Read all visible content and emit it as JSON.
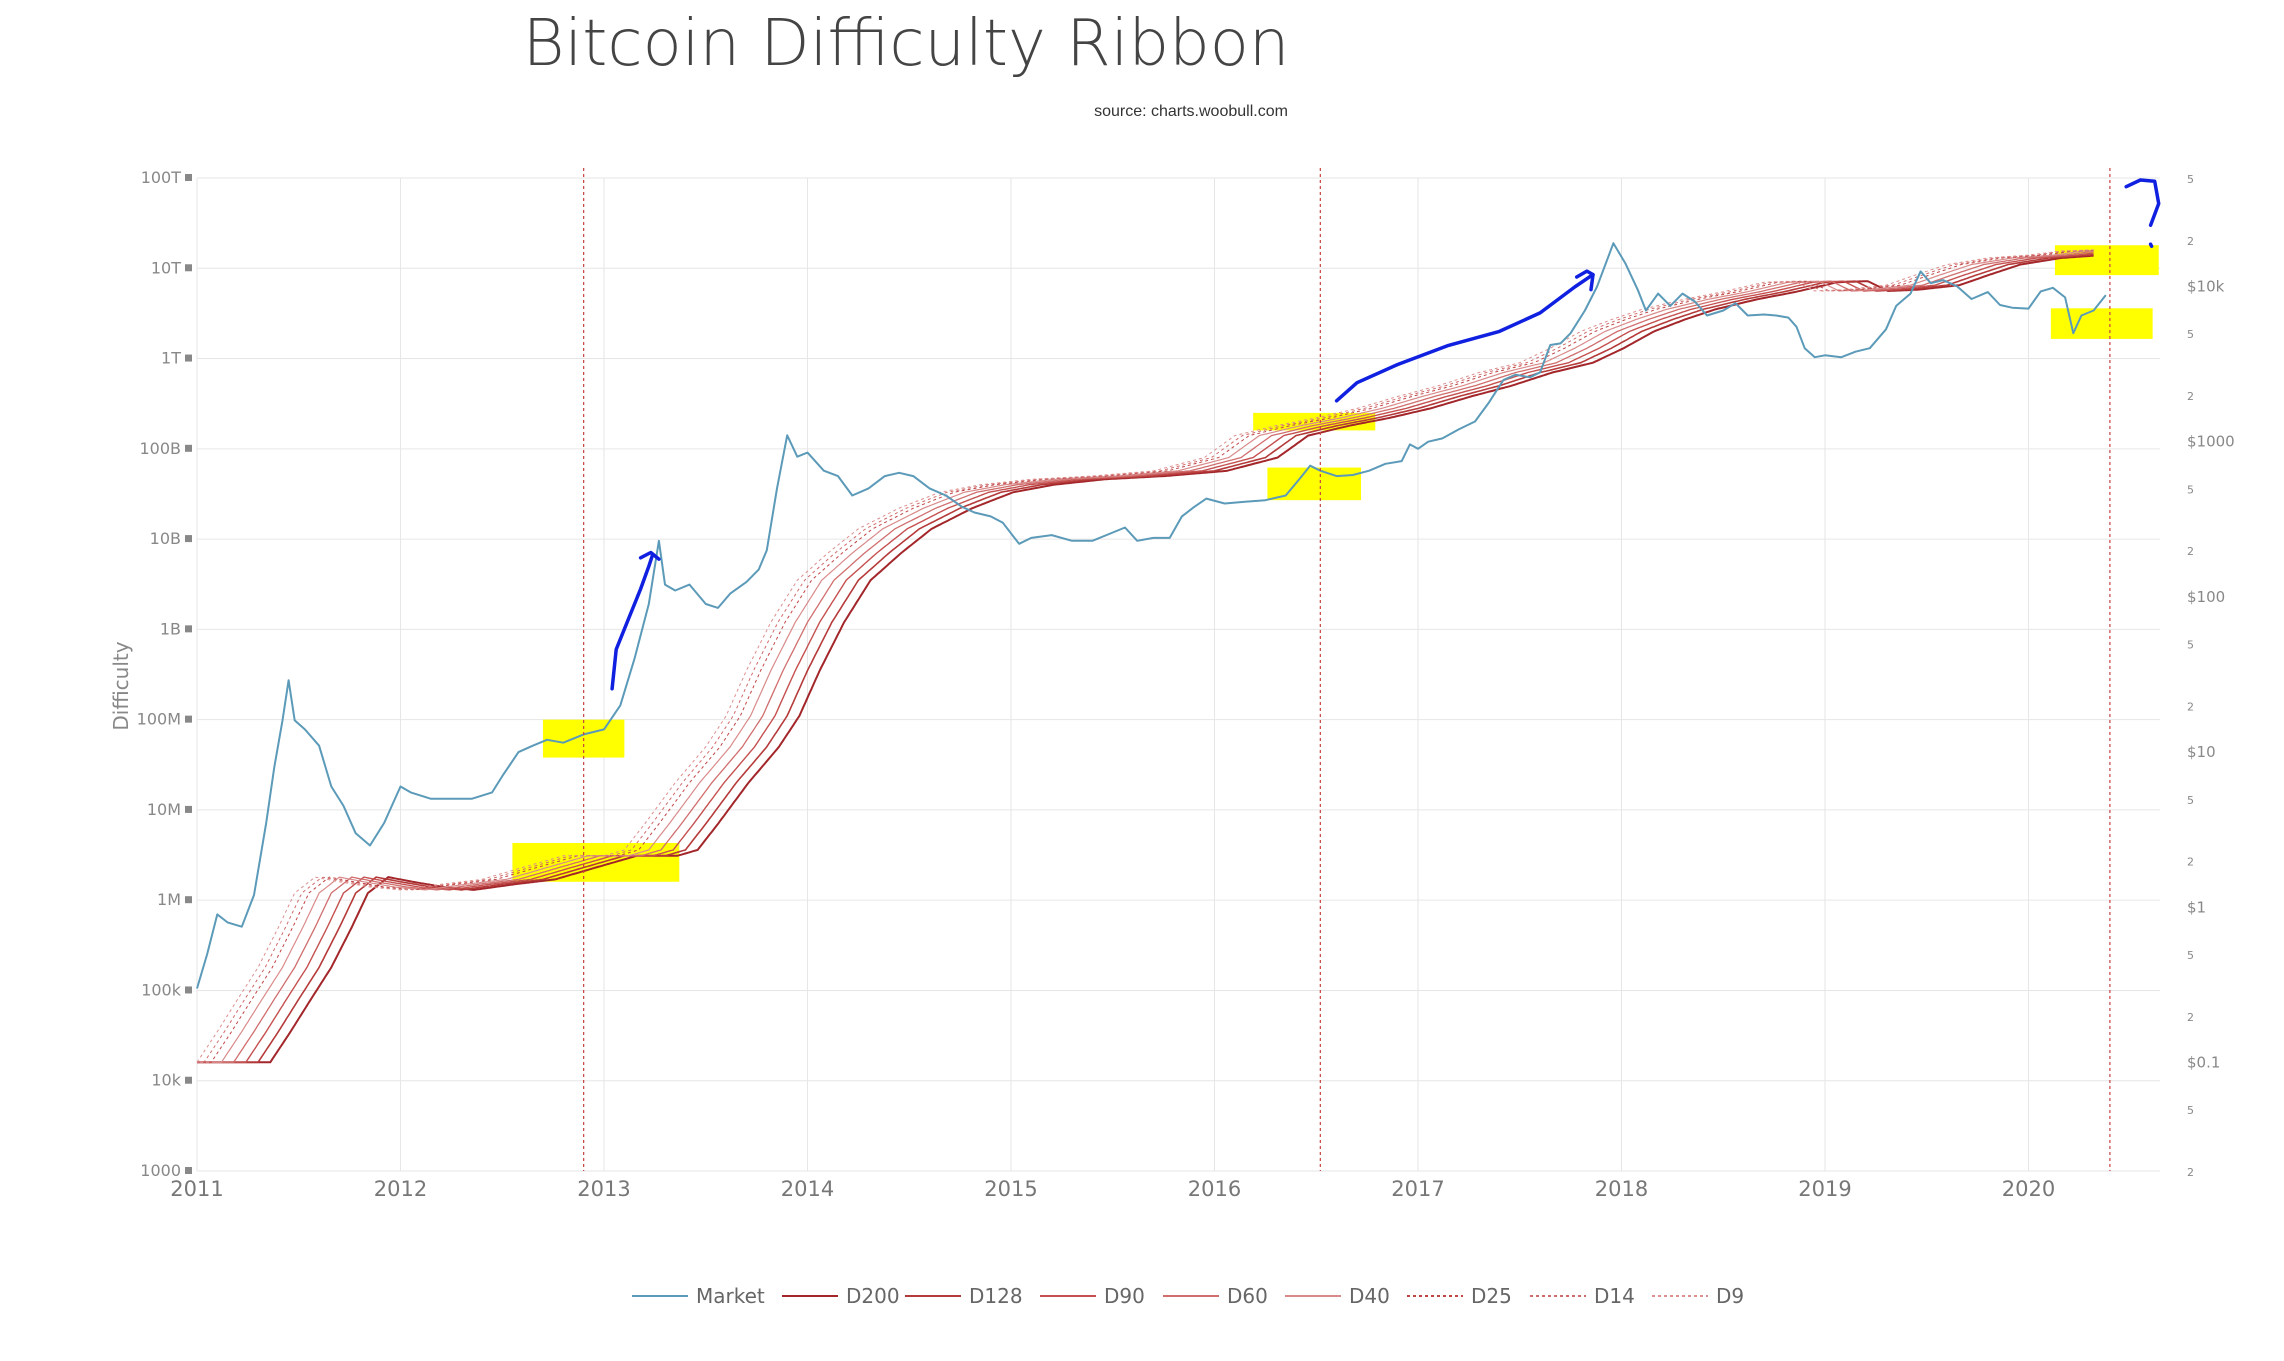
{
  "chart_data": {
    "type": "line",
    "title": "Bitcoin Difficulty Ribbon",
    "subtitle": "source: charts.woobull.com",
    "ylabel": "Difficulty",
    "y_scale": "log",
    "ylim": [
      1000,
      100000000000000
    ],
    "y_ticks": [
      {
        "value": 1000,
        "label": "1000"
      },
      {
        "value": 10000,
        "label": "10k"
      },
      {
        "value": 100000,
        "label": "100k"
      },
      {
        "value": 1000000,
        "label": "1M"
      },
      {
        "value": 10000000,
        "label": "10M"
      },
      {
        "value": 100000000,
        "label": "100M"
      },
      {
        "value": 1000000000,
        "label": "1B"
      },
      {
        "value": 10000000000,
        "label": "10B"
      },
      {
        "value": 100000000000,
        "label": "100B"
      },
      {
        "value": 1000000000000,
        "label": "1T"
      },
      {
        "value": 10000000000000,
        "label": "10T"
      },
      {
        "value": 100000000000000,
        "label": "100T"
      }
    ],
    "x_range": [
      2011.0,
      2021.0
    ],
    "x_ticks": [
      "2011",
      "2012",
      "2013",
      "2014",
      "2015",
      "2016",
      "2017",
      "2018",
      "2019",
      "2020"
    ],
    "price_scale": "log",
    "price_range": [
      0.02,
      50000
    ],
    "price_ticks": [
      {
        "value": 50000,
        "label": "5"
      },
      {
        "value": 20000,
        "label": "2"
      },
      {
        "value": 10000,
        "label": "$10k"
      },
      {
        "value": 5000,
        "label": "5"
      },
      {
        "value": 2000,
        "label": "2"
      },
      {
        "value": 1000,
        "label": "$1000"
      },
      {
        "value": 500,
        "label": "5"
      },
      {
        "value": 200,
        "label": "2"
      },
      {
        "value": 100,
        "label": "$100"
      },
      {
        "value": 50,
        "label": "5"
      },
      {
        "value": 20,
        "label": "2"
      },
      {
        "value": 10,
        "label": "$10"
      },
      {
        "value": 5,
        "label": "5"
      },
      {
        "value": 2,
        "label": "2"
      },
      {
        "value": 1,
        "label": "$1"
      },
      {
        "value": 0.5,
        "label": "5"
      },
      {
        "value": 0.2,
        "label": "2"
      },
      {
        "value": 0.1,
        "label": "$0.1"
      },
      {
        "value": 0.05,
        "label": "5"
      },
      {
        "value": 0.02,
        "label": "2"
      }
    ],
    "grid": true,
    "legend_position": "bottom",
    "vertical_markers": [
      2012.9,
      2016.52,
      2020.4
    ],
    "market": {
      "name": "Market",
      "color": "#5b9ab8",
      "points": [
        [
          2011.0,
          0.3
        ],
        [
          2011.05,
          0.5
        ],
        [
          2011.1,
          0.9
        ],
        [
          2011.15,
          0.8
        ],
        [
          2011.22,
          0.75
        ],
        [
          2011.28,
          1.2
        ],
        [
          2011.34,
          3.5
        ],
        [
          2011.38,
          8
        ],
        [
          2011.42,
          16
        ],
        [
          2011.45,
          29
        ],
        [
          2011.48,
          16
        ],
        [
          2011.53,
          14
        ],
        [
          2011.6,
          11
        ],
        [
          2011.66,
          6
        ],
        [
          2011.72,
          4.5
        ],
        [
          2011.78,
          3
        ],
        [
          2011.85,
          2.5
        ],
        [
          2011.92,
          3.5
        ],
        [
          2012.0,
          6
        ],
        [
          2012.05,
          5.5
        ],
        [
          2012.15,
          5
        ],
        [
          2012.25,
          5
        ],
        [
          2012.35,
          5
        ],
        [
          2012.45,
          5.5
        ],
        [
          2012.5,
          7
        ],
        [
          2012.58,
          10
        ],
        [
          2012.65,
          11
        ],
        [
          2012.72,
          12
        ],
        [
          2012.8,
          11.5
        ],
        [
          2012.9,
          13
        ],
        [
          2013.0,
          14
        ],
        [
          2013.08,
          20
        ],
        [
          2013.15,
          40
        ],
        [
          2013.22,
          90
        ],
        [
          2013.27,
          230
        ],
        [
          2013.3,
          120
        ],
        [
          2013.35,
          110
        ],
        [
          2013.42,
          120
        ],
        [
          2013.5,
          90
        ],
        [
          2013.56,
          85
        ],
        [
          2013.62,
          105
        ],
        [
          2013.7,
          125
        ],
        [
          2013.76,
          150
        ],
        [
          2013.8,
          200
        ],
        [
          2013.85,
          500
        ],
        [
          2013.9,
          1100
        ],
        [
          2013.95,
          800
        ],
        [
          2014.0,
          850
        ],
        [
          2014.08,
          650
        ],
        [
          2014.15,
          600
        ],
        [
          2014.22,
          450
        ],
        [
          2014.3,
          500
        ],
        [
          2014.38,
          600
        ],
        [
          2014.45,
          630
        ],
        [
          2014.52,
          600
        ],
        [
          2014.6,
          500
        ],
        [
          2014.68,
          450
        ],
        [
          2014.76,
          380
        ],
        [
          2014.82,
          350
        ],
        [
          2014.9,
          330
        ],
        [
          2014.96,
          300
        ],
        [
          2015.04,
          220
        ],
        [
          2015.1,
          240
        ],
        [
          2015.2,
          250
        ],
        [
          2015.3,
          230
        ],
        [
          2015.4,
          230
        ],
        [
          2015.5,
          260
        ],
        [
          2015.56,
          280
        ],
        [
          2015.62,
          230
        ],
        [
          2015.7,
          240
        ],
        [
          2015.78,
          240
        ],
        [
          2015.84,
          330
        ],
        [
          2015.9,
          380
        ],
        [
          2015.96,
          430
        ],
        [
          2016.05,
          400
        ],
        [
          2016.15,
          410
        ],
        [
          2016.25,
          420
        ],
        [
          2016.35,
          450
        ],
        [
          2016.42,
          580
        ],
        [
          2016.47,
          700
        ],
        [
          2016.52,
          650
        ],
        [
          2016.6,
          600
        ],
        [
          2016.68,
          610
        ],
        [
          2016.76,
          650
        ],
        [
          2016.84,
          720
        ],
        [
          2016.92,
          750
        ],
        [
          2016.96,
          960
        ],
        [
          2017.0,
          900
        ],
        [
          2017.05,
          1000
        ],
        [
          2017.12,
          1050
        ],
        [
          2017.2,
          1200
        ],
        [
          2017.28,
          1350
        ],
        [
          2017.35,
          1800
        ],
        [
          2017.42,
          2500
        ],
        [
          2017.48,
          2700
        ],
        [
          2017.55,
          2600
        ],
        [
          2017.6,
          2800
        ],
        [
          2017.65,
          4200
        ],
        [
          2017.7,
          4300
        ],
        [
          2017.75,
          5000
        ],
        [
          2017.82,
          7000
        ],
        [
          2017.88,
          10000
        ],
        [
          2017.96,
          19000
        ],
        [
          2018.02,
          14000
        ],
        [
          2018.08,
          9500
        ],
        [
          2018.12,
          7000
        ],
        [
          2018.18,
          9000
        ],
        [
          2018.24,
          7500
        ],
        [
          2018.3,
          9000
        ],
        [
          2018.36,
          8000
        ],
        [
          2018.42,
          6500
        ],
        [
          2018.5,
          7000
        ],
        [
          2018.56,
          7800
        ],
        [
          2018.62,
          6500
        ],
        [
          2018.7,
          6600
        ],
        [
          2018.76,
          6500
        ],
        [
          2018.82,
          6300
        ],
        [
          2018.86,
          5500
        ],
        [
          2018.9,
          4000
        ],
        [
          2018.95,
          3500
        ],
        [
          2019.0,
          3600
        ],
        [
          2019.08,
          3500
        ],
        [
          2019.15,
          3800
        ],
        [
          2019.22,
          4000
        ],
        [
          2019.3,
          5300
        ],
        [
          2019.35,
          7500
        ],
        [
          2019.42,
          9000
        ],
        [
          2019.47,
          12500
        ],
        [
          2019.52,
          10500
        ],
        [
          2019.58,
          11000
        ],
        [
          2019.65,
          10000
        ],
        [
          2019.72,
          8300
        ],
        [
          2019.8,
          9200
        ],
        [
          2019.86,
          7600
        ],
        [
          2019.92,
          7300
        ],
        [
          2020.0,
          7200
        ],
        [
          2020.06,
          9300
        ],
        [
          2020.12,
          9800
        ],
        [
          2020.18,
          8500
        ],
        [
          2020.22,
          5000
        ],
        [
          2020.26,
          6500
        ],
        [
          2020.32,
          7000
        ],
        [
          2020.38,
          8800
        ]
      ]
    },
    "ribbon": [
      {
        "name": "D200",
        "color": "#a3262a",
        "dash": "",
        "width": 2.0,
        "lag": 0.36
      },
      {
        "name": "D128",
        "color": "#b53a3a",
        "dash": "",
        "width": 1.6,
        "lag": 0.3
      },
      {
        "name": "D90",
        "color": "#c55050",
        "dash": "",
        "width": 1.4,
        "lag": 0.24
      },
      {
        "name": "D60",
        "color": "#d06e6e",
        "dash": "",
        "width": 1.3,
        "lag": 0.18
      },
      {
        "name": "D40",
        "color": "#d98a8a",
        "dash": "",
        "width": 1.2,
        "lag": 0.12
      },
      {
        "name": "D25",
        "color": "#c04545",
        "dash": "3,3",
        "width": 1.0,
        "lag": 0.07
      },
      {
        "name": "D14",
        "color": "#cf6b6b",
        "dash": "3,3",
        "width": 1.0,
        "lag": 0.035
      },
      {
        "name": "D9",
        "color": "#dd8f8f",
        "dash": "3,3",
        "width": 1.0,
        "lag": 0.0
      }
    ],
    "difficulty_path": [
      [
        2011.0,
        16000
      ],
      [
        2011.1,
        35000
      ],
      [
        2011.2,
        80000
      ],
      [
        2011.3,
        180000
      ],
      [
        2011.4,
        500000
      ],
      [
        2011.48,
        1200000
      ],
      [
        2011.58,
        1800000
      ],
      [
        2011.7,
        1600000
      ],
      [
        2011.85,
        1400000
      ],
      [
        2012.0,
        1300000
      ],
      [
        2012.2,
        1500000
      ],
      [
        2012.4,
        1700000
      ],
      [
        2012.6,
        2300000
      ],
      [
        2012.8,
        3100000
      ],
      [
        2013.0,
        3100000
      ],
      [
        2013.1,
        3600000
      ],
      [
        2013.2,
        7000000
      ],
      [
        2013.35,
        20000000
      ],
      [
        2013.5,
        50000000
      ],
      [
        2013.6,
        110000000
      ],
      [
        2013.7,
        350000000
      ],
      [
        2013.82,
        1200000000
      ],
      [
        2013.95,
        3500000000
      ],
      [
        2014.1,
        7000000000
      ],
      [
        2014.25,
        13000000000
      ],
      [
        2014.45,
        22000000000
      ],
      [
        2014.65,
        33000000000
      ],
      [
        2014.85,
        40000000000
      ],
      [
        2015.1,
        46000000000
      ],
      [
        2015.4,
        50000000000
      ],
      [
        2015.7,
        57000000000
      ],
      [
        2015.95,
        80000000000
      ],
      [
        2016.1,
        140000000000
      ],
      [
        2016.3,
        180000000000
      ],
      [
        2016.5,
        220000000000
      ],
      [
        2016.7,
        280000000000
      ],
      [
        2016.9,
        380000000000
      ],
      [
        2017.1,
        500000000000
      ],
      [
        2017.3,
        700000000000
      ],
      [
        2017.5,
        900000000000
      ],
      [
        2017.65,
        1300000000000
      ],
      [
        2017.8,
        2000000000000
      ],
      [
        2017.95,
        2700000000000
      ],
      [
        2018.1,
        3500000000000
      ],
      [
        2018.3,
        4500000000000
      ],
      [
        2018.5,
        5500000000000
      ],
      [
        2018.7,
        7000000000000
      ],
      [
        2018.85,
        7200000000000
      ],
      [
        2018.95,
        5600000000000
      ],
      [
        2019.1,
        5800000000000
      ],
      [
        2019.3,
        6500000000000
      ],
      [
        2019.45,
        8500000000000
      ],
      [
        2019.6,
        11000000000000
      ],
      [
        2019.8,
        13000000000000
      ],
      [
        2020.0,
        14000000000000
      ],
      [
        2020.15,
        15500000000000
      ],
      [
        2020.32,
        16000000000000
      ]
    ],
    "highlight_color": "#ffff00",
    "highlights": [
      {
        "x0": 2012.7,
        "x1": 2013.1,
        "y0": 38000000,
        "y1": 100000000
      },
      {
        "x0": 2012.55,
        "x1": 2013.37,
        "y0": 1600000,
        "y1": 4300000
      },
      {
        "x0": 2016.19,
        "x1": 2016.79,
        "y0": 160000000000,
        "y1": 250000000000
      },
      {
        "x0": 2016.26,
        "x1": 2016.72,
        "y0": 27000000000,
        "y1": 62000000000
      },
      {
        "x0": 2020.13,
        "x1": 2020.64,
        "y0": 8400000000000,
        "y1": 18000000000000
      },
      {
        "x0": 2020.11,
        "x1": 2020.61,
        "y0": 1650000000000,
        "y1": 3600000000000
      }
    ],
    "annotation_color": "#1020e0",
    "annotations": [
      [
        [
          2013.04,
          220000000
        ],
        [
          2013.06,
          600000000
        ],
        [
          2013.12,
          1300000000
        ],
        [
          2013.18,
          2800000000
        ],
        [
          2013.22,
          5000000000
        ],
        [
          2013.24,
          6800000000
        ]
      ],
      [
        [
          2013.18,
          6200000000
        ],
        [
          2013.23,
          7100000000
        ],
        [
          2013.27,
          6000000000
        ]
      ],
      [
        [
          2016.6,
          340000000000
        ],
        [
          2016.7,
          540000000000
        ],
        [
          2016.9,
          860000000000
        ],
        [
          2017.15,
          1400000000000
        ],
        [
          2017.4,
          2000000000000
        ],
        [
          2017.6,
          3200000000000
        ],
        [
          2017.77,
          6200000000000
        ],
        [
          2017.86,
          8500000000000
        ]
      ],
      [
        [
          2017.78,
          8000000000000
        ],
        [
          2017.83,
          9300000000000
        ],
        [
          2017.86,
          8500000000000
        ],
        [
          2017.85,
          5800000000000
        ]
      ],
      [
        [
          2020.48,
          80000000000000
        ],
        [
          2020.55,
          95000000000000
        ],
        [
          2020.62,
          92000000000000
        ],
        [
          2020.64,
          52000000000000
        ],
        [
          2020.6,
          30000000000000
        ]
      ],
      [
        [
          2020.6,
          18500000000000
        ],
        [
          2020.605,
          17500000000000
        ]
      ]
    ]
  }
}
